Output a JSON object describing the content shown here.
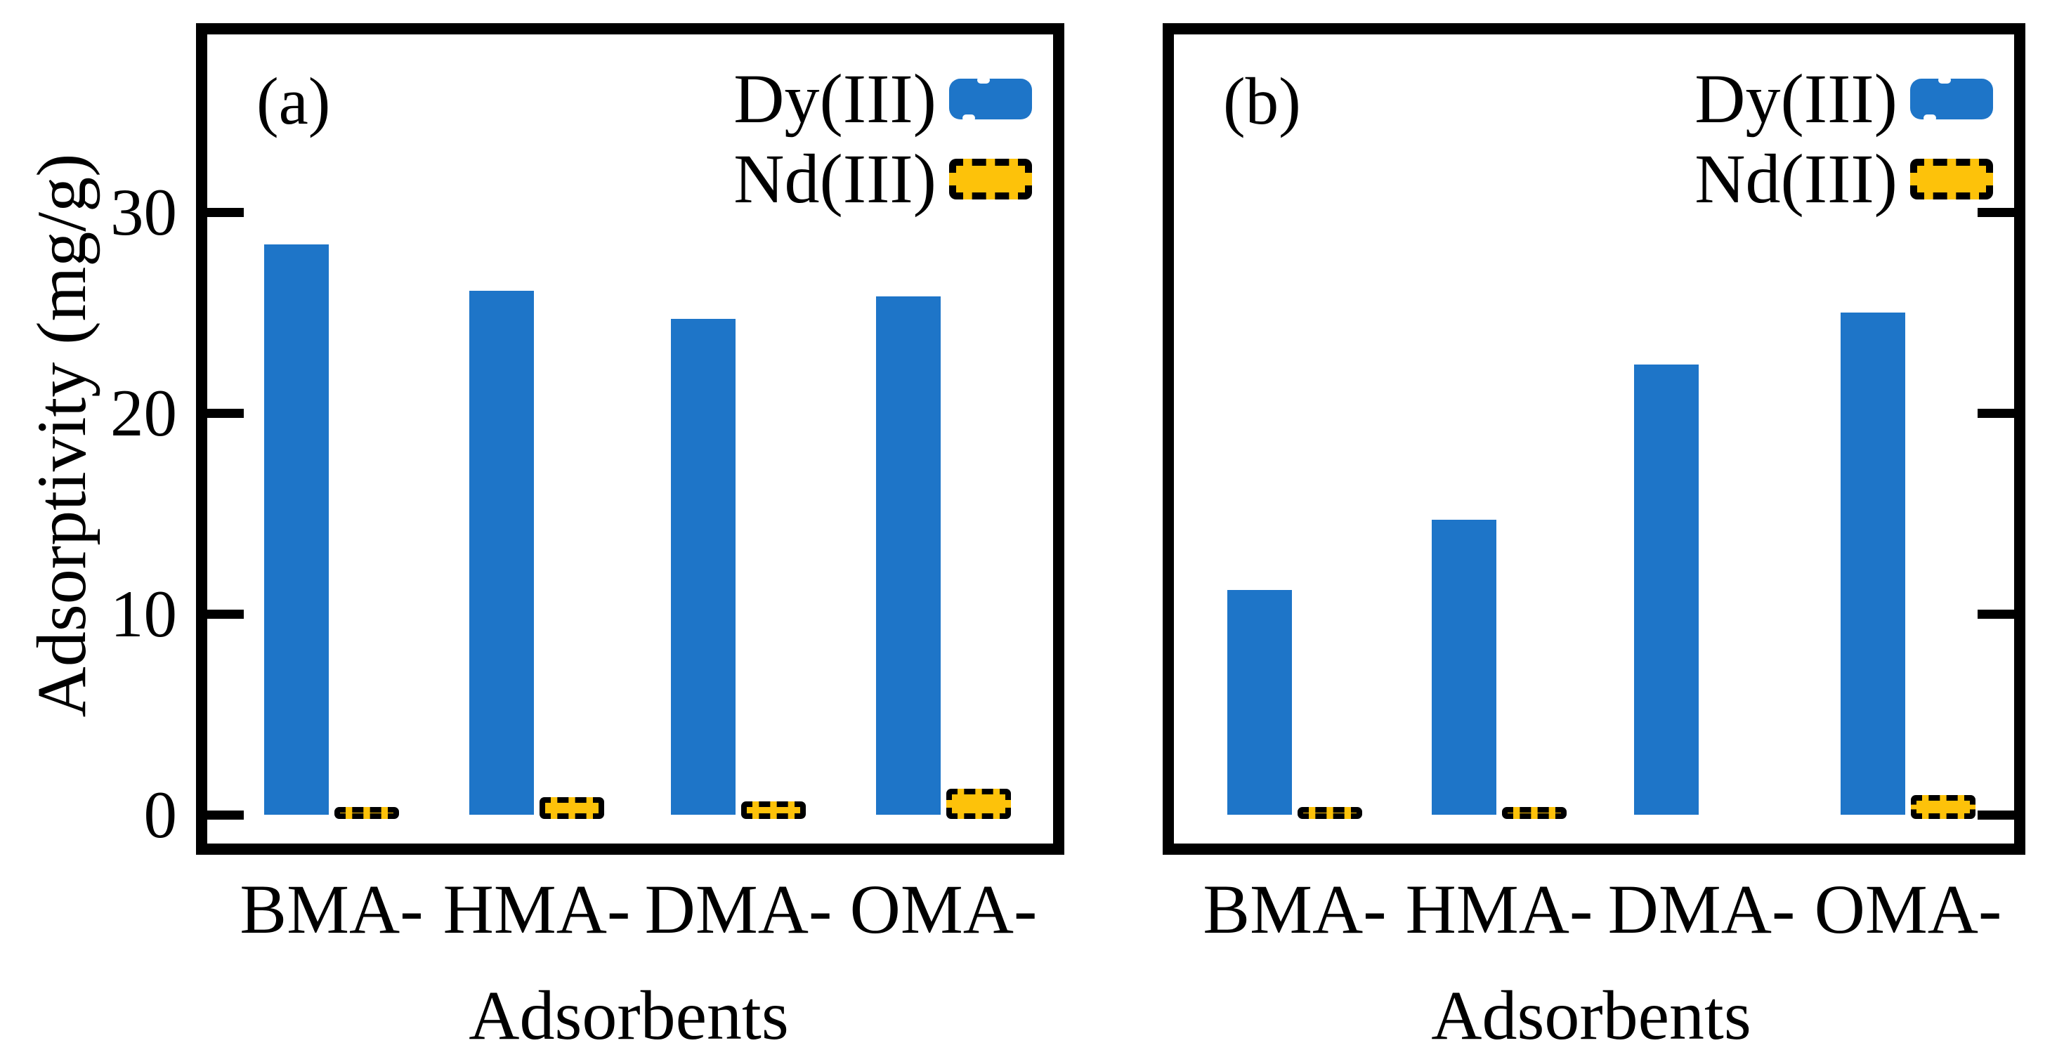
{
  "colors": {
    "dy_blue": "#1E75C8",
    "nd_yellow": "#FDC20A",
    "axis_black": "#000000"
  },
  "figure": {
    "y_axis_label": "Adsorptivity (mg/g)",
    "x_axis_label": "Adsorbents",
    "y_tick_labels": [
      "0",
      "10",
      "20",
      "30"
    ],
    "categories": [
      "BMA-",
      "HMA-",
      "DMA-",
      "OMA-"
    ],
    "legend": [
      {
        "label": "Dy(III)",
        "color": "#1E75C8"
      },
      {
        "label": "Nd(III)",
        "color": "#FDC20A"
      }
    ],
    "panels": [
      {
        "tag": "(a)"
      },
      {
        "tag": "(b)"
      }
    ]
  },
  "chart_data": [
    {
      "type": "bar",
      "panel": "(a)",
      "title": "",
      "categories": [
        "BMA-",
        "HMA-",
        "DMA-",
        "OMA-"
      ],
      "series": [
        {
          "name": "Dy(III)",
          "color": "#1E75C8",
          "values": [
            28.4,
            26.1,
            24.7,
            25.8
          ]
        },
        {
          "name": "Nd(III)",
          "color": "#FDC20A",
          "values": [
            0.1,
            0.6,
            0.4,
            1.0
          ]
        }
      ],
      "xlabel": "Adsorbents",
      "ylabel": "Adsorptivity (mg/g)",
      "ylim": [
        -1,
        39
      ],
      "yticks": [
        0,
        10,
        20,
        30
      ],
      "grid": false,
      "legend_position": "top-right",
      "bar_style": {
        "Dy(III)": "solid",
        "Nd(III)": "dashed-outline"
      }
    },
    {
      "type": "bar",
      "panel": "(b)",
      "title": "",
      "categories": [
        "BMA-",
        "HMA-",
        "DMA-",
        "OMA-"
      ],
      "series": [
        {
          "name": "Dy(III)",
          "color": "#1E75C8",
          "values": [
            11.2,
            14.7,
            22.4,
            25.0
          ]
        },
        {
          "name": "Nd(III)",
          "color": "#FDC20A",
          "values": [
            0.1,
            0.1,
            0,
            0.7
          ]
        }
      ],
      "xlabel": "Adsorbents",
      "ylabel": "",
      "ylim": [
        -1,
        39
      ],
      "yticks": [
        0,
        10,
        20,
        30
      ],
      "grid": false,
      "legend_position": "top-right",
      "bar_style": {
        "Dy(III)": "solid",
        "Nd(III)": "dashed-outline"
      }
    }
  ]
}
